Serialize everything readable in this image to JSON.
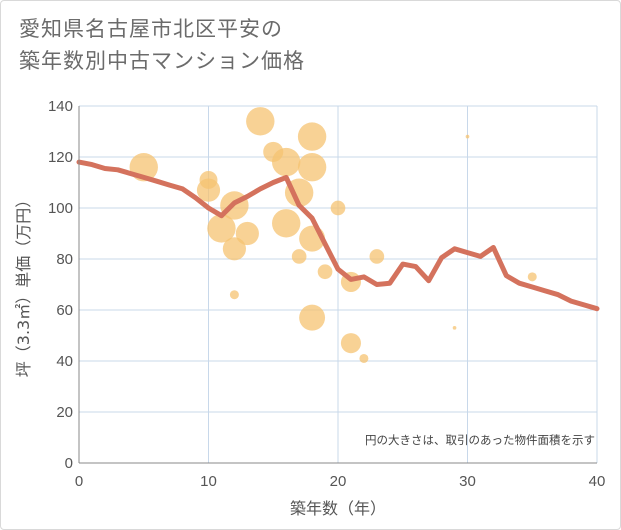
{
  "title": {
    "line1": "愛知県名古屋市北区平安の",
    "line2": "築年数別中古マンション価格"
  },
  "colors": {
    "bubble": "#f5c372",
    "line": "#d4725d",
    "grid": "#c8d8ea",
    "axis": "#888888"
  },
  "chart_data": {
    "type": "scatter",
    "xlabel": "築年数（年）",
    "ylabel": "坪（3.3㎡）単価（万円）",
    "xlim": [
      0,
      40
    ],
    "ylim": [
      0,
      140
    ],
    "xticks": [
      0,
      10,
      20,
      30,
      40
    ],
    "yticks": [
      0,
      20,
      40,
      60,
      80,
      100,
      120,
      140
    ],
    "grid": true,
    "note": "円の大きさは、取引のあった物件面積を示す",
    "bubbles": [
      {
        "x": 5,
        "y": 116,
        "size": 3
      },
      {
        "x": 10,
        "y": 111,
        "size": 1.2
      },
      {
        "x": 10,
        "y": 107,
        "size": 2
      },
      {
        "x": 11,
        "y": 92,
        "size": 3
      },
      {
        "x": 12,
        "y": 101,
        "size": 3
      },
      {
        "x": 12,
        "y": 84,
        "size": 2
      },
      {
        "x": 12,
        "y": 66,
        "size": 0.3
      },
      {
        "x": 13,
        "y": 90,
        "size": 2
      },
      {
        "x": 14,
        "y": 134,
        "size": 3
      },
      {
        "x": 15,
        "y": 122,
        "size": 1.5
      },
      {
        "x": 16,
        "y": 118,
        "size": 3
      },
      {
        "x": 16,
        "y": 94,
        "size": 3
      },
      {
        "x": 17,
        "y": 106,
        "size": 3
      },
      {
        "x": 17,
        "y": 81,
        "size": 0.8
      },
      {
        "x": 18,
        "y": 128,
        "size": 3
      },
      {
        "x": 18,
        "y": 116,
        "size": 3
      },
      {
        "x": 18,
        "y": 88,
        "size": 2.5
      },
      {
        "x": 18,
        "y": 57,
        "size": 2.5
      },
      {
        "x": 19,
        "y": 75,
        "size": 0.8
      },
      {
        "x": 20,
        "y": 100,
        "size": 0.8
      },
      {
        "x": 21,
        "y": 71,
        "size": 1.5
      },
      {
        "x": 21,
        "y": 47,
        "size": 1.5
      },
      {
        "x": 22,
        "y": 41,
        "size": 0.3
      },
      {
        "x": 23,
        "y": 81,
        "size": 0.8
      },
      {
        "x": 29,
        "y": 53,
        "size": 0.05
      },
      {
        "x": 30,
        "y": 128,
        "size": 0.05
      },
      {
        "x": 35,
        "y": 73,
        "size": 0.3
      }
    ],
    "series": [
      {
        "x": [
          0,
          1,
          2,
          3,
          4,
          5,
          6,
          7,
          8,
          9,
          10,
          11,
          12,
          13,
          14,
          15,
          16,
          17,
          18,
          19,
          20,
          21,
          22,
          23,
          24,
          25,
          26,
          27,
          28,
          29,
          30,
          31,
          32,
          33,
          34,
          35,
          36,
          37,
          38,
          39,
          40
        ],
        "y": [
          118,
          117,
          115.5,
          115,
          113.5,
          112,
          110.5,
          109,
          107.5,
          104,
          100,
          97,
          102,
          104.5,
          107.5,
          110,
          112,
          101,
          96,
          86,
          76,
          72,
          73,
          70,
          70.5,
          78,
          77,
          71.5,
          80.5,
          84,
          82.5,
          81,
          84.5,
          73.5,
          70.5,
          69,
          67.5,
          66,
          63.5,
          62,
          60.5
        ]
      }
    ]
  }
}
